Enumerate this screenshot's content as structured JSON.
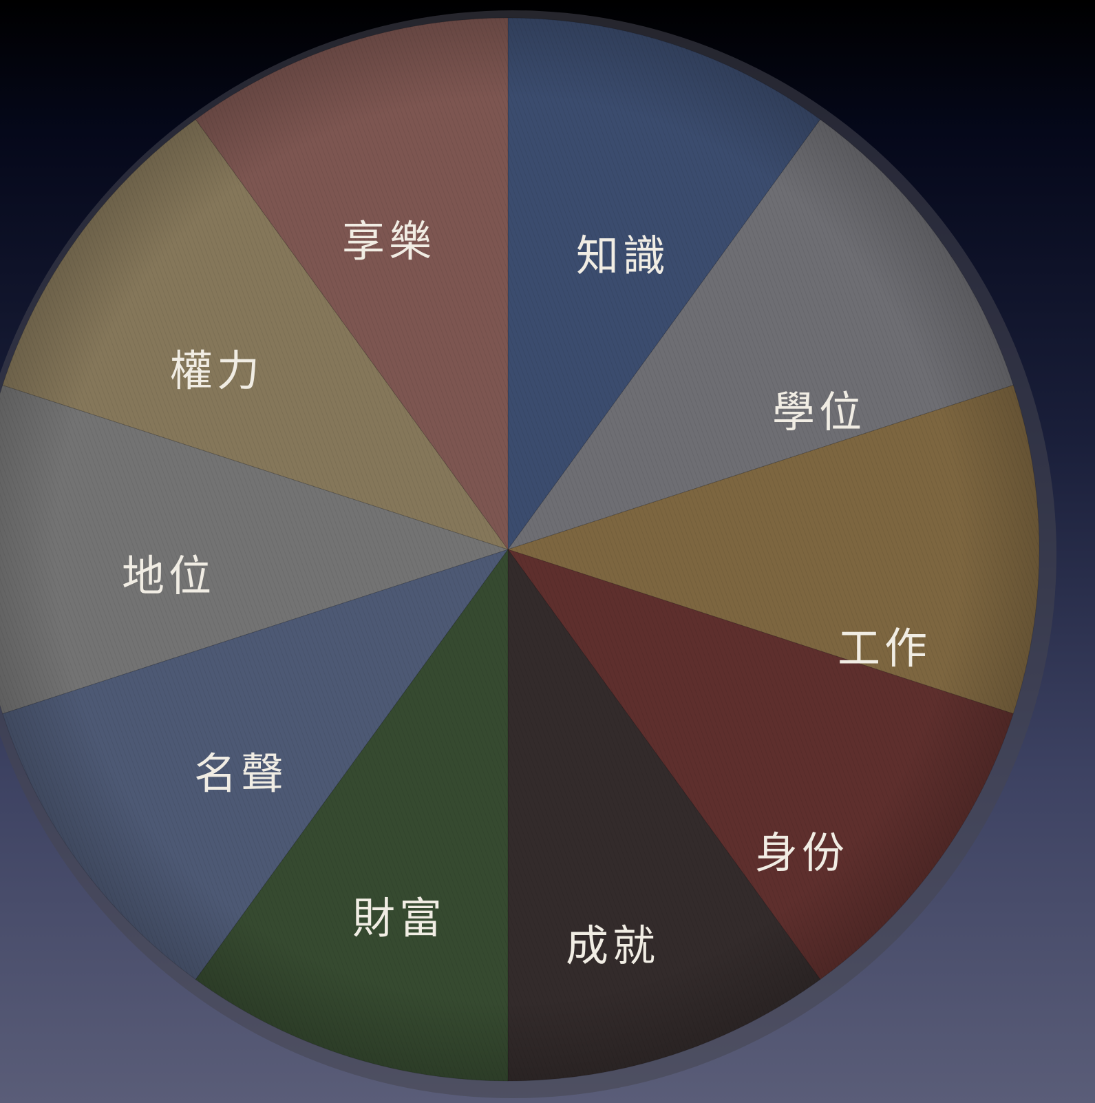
{
  "chart_data": {
    "type": "pie",
    "categories": [
      "知識",
      "學位",
      "工作",
      "身份",
      "成就",
      "財富",
      "名聲",
      "地位",
      "權力",
      "享樂"
    ],
    "values": [
      10,
      10,
      10,
      10,
      10,
      10,
      10,
      10,
      10,
      10
    ],
    "colors": [
      "#3b4c6e",
      "#6e6e73",
      "#7d6640",
      "#5e2f2d",
      "#332b2b",
      "#364a30",
      "#4d5974",
      "#737373",
      "#85775a",
      "#7d5651"
    ],
    "labels": {
      "s0": "知識",
      "s1": "學位",
      "s2": "工作",
      "s3": "身份",
      "s4": "成就",
      "s5": "財富",
      "s6": "名聲",
      "s7": "地位",
      "s8": "權力",
      "s9": "享樂"
    },
    "start": "top",
    "direction": "clockwise",
    "title": "",
    "legend": "none"
  }
}
